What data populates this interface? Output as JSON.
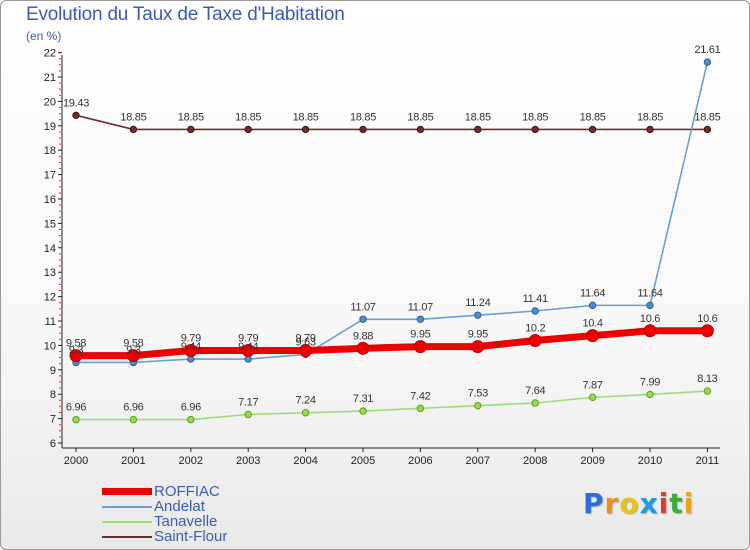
{
  "chart_data": {
    "type": "line",
    "title": "Evolution du Taux de Taxe d'Habitation",
    "subtitle": "(en %)",
    "xlabel": "",
    "ylabel": "(en %)",
    "ylim": [
      6,
      22
    ],
    "yticks": [
      "6",
      "7",
      "8",
      "9",
      "10",
      "11",
      "12",
      "13",
      "14",
      "15",
      "16",
      "17",
      "18",
      "19",
      "20",
      "21",
      "22"
    ],
    "categories": [
      "2000",
      "2001",
      "2002",
      "2003",
      "2004",
      "2005",
      "2006",
      "2007",
      "2008",
      "2009",
      "2010",
      "2011"
    ],
    "grid": false,
    "series": [
      {
        "name": "Saint-Flour",
        "color": "#6e2c2c",
        "values": [
          19.43,
          18.85,
          18.85,
          18.85,
          18.85,
          18.85,
          18.85,
          18.85,
          18.85,
          18.85,
          18.85,
          18.85
        ],
        "labels": [
          "19.43",
          "18.85",
          "18.85",
          "18.85",
          "18.85",
          "18.85",
          "18.85",
          "18.85",
          "18.85",
          "18.85",
          "18.85",
          "18.85"
        ]
      },
      {
        "name": "Tanavelle",
        "color": "#99dd77",
        "values": [
          6.96,
          6.96,
          6.96,
          7.17,
          7.24,
          7.31,
          7.42,
          7.53,
          7.64,
          7.87,
          7.99,
          8.13
        ],
        "labels": [
          "6.96",
          "6.96",
          "6.96",
          "7.17",
          "7.24",
          "7.31",
          "7.42",
          "7.53",
          "7.64",
          "7.87",
          "7.99",
          "8.13"
        ]
      },
      {
        "name": "Andelat",
        "color": "#6a9fd0",
        "values": [
          9.3,
          9.3,
          9.44,
          9.44,
          9.63,
          11.07,
          11.07,
          11.24,
          11.41,
          11.64,
          11.64,
          21.61
        ],
        "labels": [
          "9.3",
          "9.3",
          "9.44",
          "9.44",
          "9.63",
          "11.07",
          "11.07",
          "11.24",
          "11.41",
          "11.64",
          "11.64",
          "21.61"
        ]
      },
      {
        "name": "ROFFIAC",
        "color": "#ee0000",
        "values": [
          9.58,
          9.58,
          9.79,
          9.79,
          9.79,
          9.88,
          9.95,
          9.95,
          10.2,
          10.4,
          10.6,
          10.6
        ],
        "labels": [
          "9.58",
          "9.58",
          "9.79",
          "9.79",
          "9.79",
          "9.88",
          "9.95",
          "9.95",
          "10.2",
          "10.4",
          "10.6",
          "10.6"
        ]
      }
    ],
    "legend_order": [
      "ROFFIAC",
      "Andelat",
      "Tanavelle",
      "Saint-Flour"
    ],
    "legend_position": "bottom-left"
  },
  "logo": {
    "letters": [
      "P",
      "r",
      "o",
      "x",
      "i",
      "t",
      "i"
    ],
    "colors": [
      "#2d6fd1",
      "#f08c1a",
      "#e8c316",
      "#1e9be0",
      "#e03a2e",
      "#3eaa3e",
      "#e8a31a"
    ]
  }
}
